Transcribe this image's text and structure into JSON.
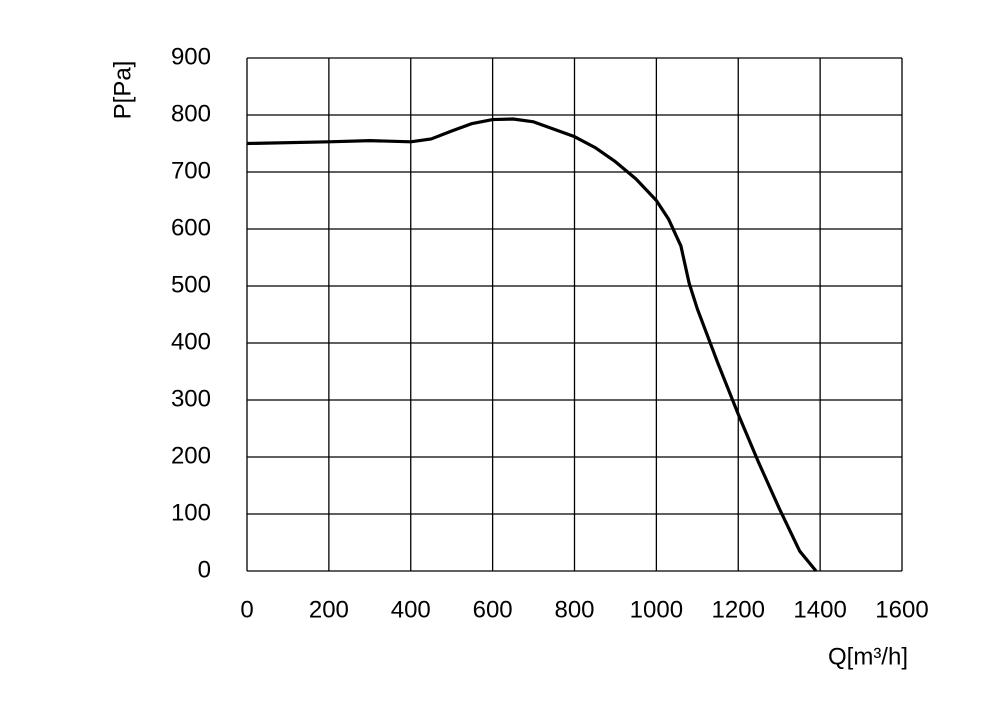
{
  "chart_data": {
    "type": "line",
    "x_label": "Q[m³/h]",
    "y_label": "P[Pa]",
    "x": [
      0,
      200,
      300,
      400,
      450,
      500,
      550,
      600,
      650,
      700,
      800,
      850,
      900,
      950,
      1000,
      1030,
      1060,
      1080,
      1100,
      1150,
      1200,
      1250,
      1300,
      1350,
      1390
    ],
    "series": [
      {
        "color": "#000000",
        "values": [
          750,
          753,
          755,
          753,
          758,
          772,
          785,
          792,
          793,
          788,
          762,
          743,
          718,
          688,
          650,
          617,
          570,
          505,
          460,
          365,
          275,
          190,
          110,
          35,
          0
        ]
      }
    ],
    "xlim": [
      0,
      1600
    ],
    "xticks": [
      0,
      200,
      400,
      600,
      800,
      1000,
      1200,
      1400,
      1600
    ],
    "ylim": [
      0,
      900
    ],
    "yticks": [
      0,
      100,
      200,
      300,
      400,
      500,
      600,
      700,
      800,
      900
    ],
    "grid": true
  }
}
